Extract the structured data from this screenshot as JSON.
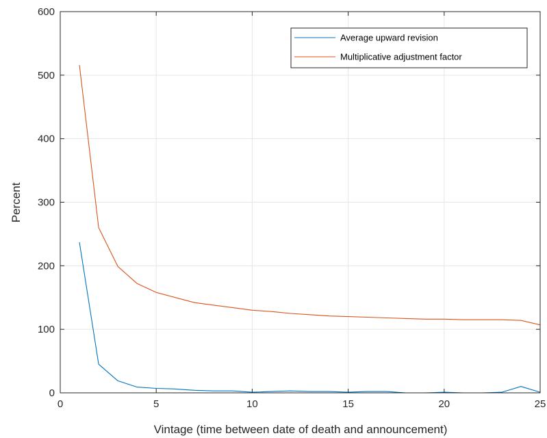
{
  "chart_data": {
    "type": "line",
    "xlabel": "Vintage (time between date of death and announcement)",
    "ylabel": "Percent",
    "xlim": [
      0,
      25
    ],
    "ylim": [
      0,
      600
    ],
    "xticks": [
      0,
      5,
      10,
      15,
      20,
      25
    ],
    "yticks": [
      0,
      100,
      200,
      300,
      400,
      500,
      600
    ],
    "grid": true,
    "legend_position": "top-right",
    "series": [
      {
        "name": "Average upward revision",
        "color": "#0072BD",
        "x": [
          1,
          2,
          3,
          4,
          5,
          6,
          7,
          8,
          9,
          10,
          11,
          12,
          13,
          14,
          15,
          16,
          17,
          18,
          19,
          20,
          21,
          22,
          23,
          24,
          25
        ],
        "y": [
          237,
          45,
          19,
          9,
          7,
          6,
          4,
          3,
          3,
          1,
          2,
          3,
          2,
          2,
          1,
          2,
          2,
          0,
          0,
          1,
          0,
          0,
          1,
          10,
          1
        ]
      },
      {
        "name": "Multiplicative adjustment factor",
        "color": "#D95319",
        "x": [
          1,
          2,
          3,
          4,
          5,
          6,
          7,
          8,
          9,
          10,
          11,
          12,
          13,
          14,
          15,
          16,
          17,
          18,
          19,
          20,
          21,
          22,
          23,
          24,
          25
        ],
        "y": [
          516,
          260,
          199,
          172,
          158,
          150,
          142,
          138,
          134,
          130,
          128,
          125,
          123,
          121,
          120,
          119,
          118,
          117,
          116,
          116,
          115,
          115,
          115,
          114,
          107
        ]
      }
    ]
  }
}
